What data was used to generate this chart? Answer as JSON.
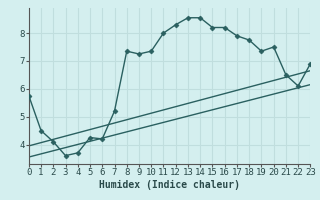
{
  "xlabel": "Humidex (Indice chaleur)",
  "bg_color": "#d4efef",
  "grid_color": "#c0dede",
  "line_color": "#2a6060",
  "x_ticks": [
    0,
    1,
    2,
    3,
    4,
    5,
    6,
    7,
    8,
    9,
    10,
    11,
    12,
    13,
    14,
    15,
    16,
    17,
    18,
    19,
    20,
    21,
    22,
    23
  ],
  "y_ticks": [
    4,
    5,
    6,
    7,
    8
  ],
  "ylim": [
    3.3,
    8.9
  ],
  "xlim": [
    0,
    23
  ],
  "curve_x": [
    0,
    1,
    2,
    3,
    4,
    5,
    6,
    7,
    8,
    9,
    10,
    11,
    12,
    13,
    14,
    15,
    16,
    17,
    18,
    19,
    20,
    21,
    22,
    23
  ],
  "curve_y": [
    5.75,
    4.5,
    4.1,
    3.6,
    3.7,
    4.25,
    4.2,
    5.2,
    7.35,
    7.25,
    7.35,
    8.0,
    8.3,
    8.55,
    8.55,
    8.2,
    8.2,
    7.9,
    7.75,
    7.35,
    7.5,
    6.5,
    6.1,
    6.9
  ],
  "line1_x": [
    0,
    23
  ],
  "line1_y": [
    3.55,
    6.15
  ],
  "line2_x": [
    0,
    23
  ],
  "line2_y": [
    3.95,
    6.65
  ],
  "marker": "D",
  "marker_size": 2.5,
  "line_width": 1.0,
  "xlabel_fontsize": 7,
  "tick_fontsize": 6.5
}
